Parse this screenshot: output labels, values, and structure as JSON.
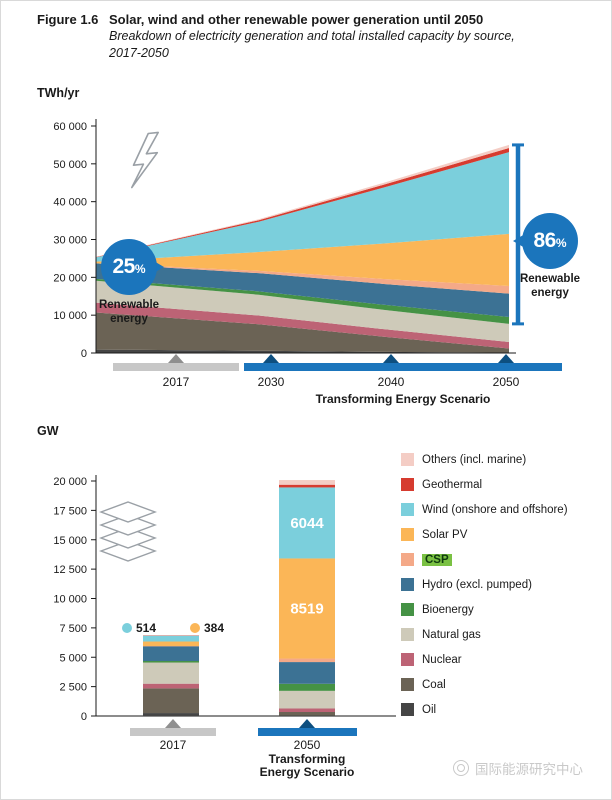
{
  "figure": {
    "label": "Figure 1.6",
    "title": "Solar, wind and other renewable power generation until 2050",
    "subtitle_line1": "Breakdown of electricity generation and total installed capacity by source,",
    "subtitle_line2": "2017-2050"
  },
  "colors": {
    "accent_blue": "#1b75bc",
    "timeline_gray": "#c7c7c7",
    "timeline_arrow_gray": "#8f8f8f",
    "timeline_arrow_blue": "#0d4f80",
    "axis": "#1a1a1a",
    "icon_outline": "#9aa0a6"
  },
  "top_chart": {
    "unit": "TWh/yr",
    "y_tick_labels": [
      "0",
      "10 000",
      "20 000",
      "30 000",
      "40 000",
      "50 000",
      "60 000"
    ],
    "badge_left": {
      "value": "25",
      "pct_sign": "%",
      "label": "Renewable energy"
    },
    "badge_right": {
      "value": "86",
      "pct_sign": "%",
      "label": "Renewable energy"
    },
    "timeline": {
      "gray_year": "2017",
      "blue_years": [
        "2030",
        "2040",
        "2050"
      ],
      "scenario_label": "Transforming Energy Scenario"
    }
  },
  "bottom_chart": {
    "unit": "GW",
    "y_tick_labels": [
      "0",
      "2 500",
      "5 000",
      "7 500",
      "10 000",
      "12 500",
      "15 000",
      "17 500",
      "20 000"
    ],
    "inside_labels": {
      "wind_2050": "6044",
      "solar_2050": "8519"
    },
    "callouts": [
      {
        "value": "514",
        "color": "#7bcfdc"
      },
      {
        "value": "384",
        "color": "#fbb657"
      }
    ],
    "timeline": {
      "gray_year": "2017",
      "blue_year": "2050",
      "scenario_line1": "Transforming",
      "scenario_line2": "Energy Scenario"
    }
  },
  "legend": {
    "items": [
      {
        "label": "Others (incl. marine)",
        "color": "#f4cdc5",
        "highlight": false
      },
      {
        "label": "Geothermal",
        "color": "#d63b2f",
        "highlight": false
      },
      {
        "label": "Wind (onshore and offshore)",
        "color": "#7bcfdc",
        "highlight": false
      },
      {
        "label": "Solar PV",
        "color": "#fbb657",
        "highlight": false
      },
      {
        "label": "CSP",
        "color": "#f4a988",
        "highlight": true
      },
      {
        "label": "Hydro (excl. pumped)",
        "color": "#3c7294",
        "highlight": false
      },
      {
        "label": "Bioenergy",
        "color": "#459245",
        "highlight": false
      },
      {
        "label": "Natural gas",
        "color": "#cecab9",
        "highlight": false
      },
      {
        "label": "Nuclear",
        "color": "#bd6375",
        "highlight": false
      },
      {
        "label": "Coal",
        "color": "#6b6355",
        "highlight": false
      },
      {
        "label": "Oil",
        "color": "#454545",
        "highlight": false
      }
    ]
  },
  "watermark": {
    "text": "国际能源研究中心"
  },
  "chart_data": [
    {
      "type": "area",
      "title": "Electricity generation by source, 2017-2050, Transforming Energy Scenario",
      "ylabel": "TWh/yr",
      "x": [
        2017,
        2030,
        2040,
        2050
      ],
      "ylim": [
        0,
        60000
      ],
      "stack_order": "bottom to top",
      "grid": false,
      "series": [
        {
          "name": "Oil",
          "color": "#454545",
          "renewable": false,
          "values": [
            900,
            600,
            300,
            100
          ]
        },
        {
          "name": "Coal",
          "color": "#6b6355",
          "renewable": false,
          "values": [
            9800,
            7000,
            4000,
            1100
          ]
        },
        {
          "name": "Nuclear",
          "color": "#bd6375",
          "renewable": false,
          "values": [
            2600,
            2300,
            2000,
            1700
          ]
        },
        {
          "name": "Natural gas",
          "color": "#cecab9",
          "renewable": false,
          "values": [
            5800,
            5500,
            5100,
            4800
          ]
        },
        {
          "name": "Bioenergy",
          "color": "#459245",
          "renewable": true,
          "values": [
            500,
            900,
            1350,
            1800
          ]
        },
        {
          "name": "Hydro (excl. pumped)",
          "color": "#3c7294",
          "renewable": true,
          "values": [
            4100,
            4800,
            5500,
            6200
          ]
        },
        {
          "name": "CSP",
          "color": "#f4a988",
          "renewable": true,
          "values": [
            12,
            600,
            1300,
            2000
          ]
        },
        {
          "name": "Solar PV",
          "color": "#fbb657",
          "renewable": true,
          "values": [
            440,
            5000,
            9400,
            13800
          ]
        },
        {
          "name": "Wind (onshore and offshore)",
          "color": "#7bcfdc",
          "renewable": true,
          "values": [
            1130,
            8000,
            14800,
            21600
          ]
        },
        {
          "name": "Geothermal",
          "color": "#d63b2f",
          "renewable": true,
          "values": [
            85,
            400,
            750,
            1100
          ]
        },
        {
          "name": "Others (incl. marine)",
          "color": "#f4cdc5",
          "renewable": true,
          "values": [
            60,
            250,
            500,
            800
          ]
        }
      ],
      "annotations": [
        {
          "text": "25% Renewable energy",
          "x": 2017
        },
        {
          "text": "86% Renewable energy",
          "x": 2050
        }
      ]
    },
    {
      "type": "bar",
      "title": "Total installed capacity by source (GW)",
      "ylabel": "GW",
      "categories": [
        "2017",
        "2050 Transforming Energy Scenario"
      ],
      "ylim": [
        0,
        20000
      ],
      "stack_order": "bottom to top",
      "grid": false,
      "series": [
        {
          "name": "Oil",
          "color": "#454545",
          "values": [
            250,
            40
          ]
        },
        {
          "name": "Coal",
          "color": "#6b6355",
          "values": [
            2100,
            300
          ]
        },
        {
          "name": "Nuclear",
          "color": "#bd6375",
          "values": [
            400,
            300
          ]
        },
        {
          "name": "Natural gas",
          "color": "#cecab9",
          "values": [
            1800,
            1500
          ]
        },
        {
          "name": "Bioenergy",
          "color": "#459245",
          "values": [
            130,
            600
          ]
        },
        {
          "name": "Hydro (excl. pumped)",
          "color": "#3c7294",
          "values": [
            1270,
            1850
          ]
        },
        {
          "name": "CSP",
          "color": "#f4a988",
          "values": [
            5,
            300
          ]
        },
        {
          "name": "Solar PV",
          "color": "#fbb657",
          "values": [
            384,
            8519
          ]
        },
        {
          "name": "Wind (onshore and offshore)",
          "color": "#7bcfdc",
          "values": [
            514,
            6044
          ]
        },
        {
          "name": "Geothermal",
          "color": "#d63b2f",
          "values": [
            14,
            230
          ]
        },
        {
          "name": "Others (incl. marine)",
          "color": "#f4cdc5",
          "values": [
            2,
            400
          ]
        }
      ],
      "data_labels": [
        {
          "series": "Wind (onshore and offshore)",
          "category": "2050",
          "value": 6044
        },
        {
          "series": "Solar PV",
          "category": "2050",
          "value": 8519
        },
        {
          "series": "Wind (onshore and offshore)",
          "category": "2017",
          "value": 514
        },
        {
          "series": "Solar PV",
          "category": "2017",
          "value": 384
        }
      ]
    }
  ]
}
